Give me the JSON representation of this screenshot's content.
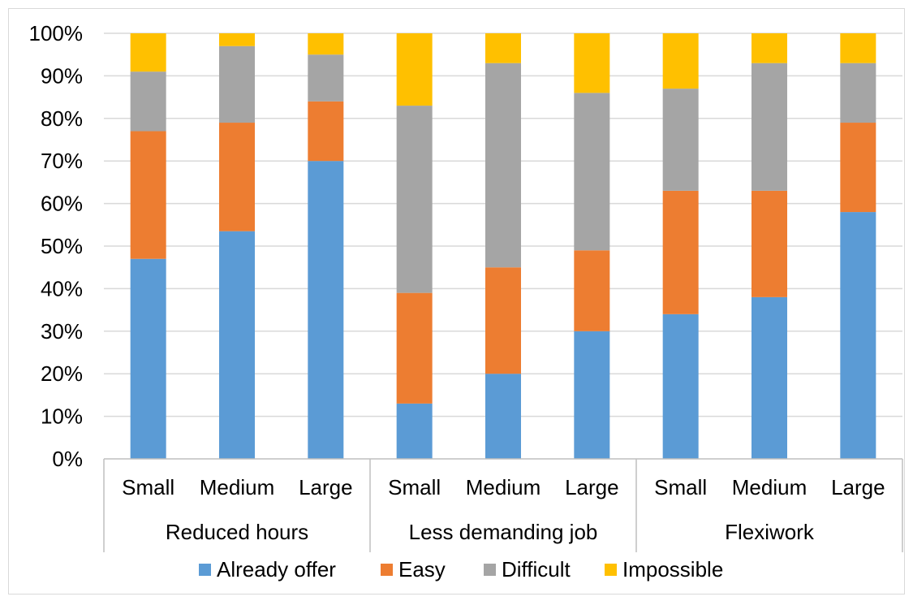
{
  "chart_data": {
    "type": "bar",
    "stacked": true,
    "percent_stacked": true,
    "groups": [
      {
        "label": "Reduced hours",
        "categories": [
          "Small",
          "Medium",
          "Large"
        ]
      },
      {
        "label": "Less demanding job",
        "categories": [
          "Small",
          "Medium",
          "Large"
        ]
      },
      {
        "label": "Flexiwork",
        "categories": [
          "Small",
          "Medium",
          "Large"
        ]
      }
    ],
    "series": [
      {
        "name": "Already offer",
        "color": "#5b9bd5",
        "values": [
          47,
          53.5,
          70,
          13,
          20,
          30,
          34,
          38,
          58
        ]
      },
      {
        "name": "Easy",
        "color": "#ed7d31",
        "values": [
          30,
          25.5,
          14,
          26,
          25,
          19,
          29,
          25,
          21
        ]
      },
      {
        "name": "Difficult",
        "color": "#a5a5a5",
        "values": [
          14,
          18,
          11,
          44,
          48,
          37,
          24,
          30,
          14
        ]
      },
      {
        "name": "Impossible",
        "color": "#ffc000",
        "values": [
          9,
          3,
          5,
          17,
          7,
          14,
          13,
          7,
          7
        ]
      }
    ],
    "yticks": [
      "0%",
      "10%",
      "20%",
      "30%",
      "40%",
      "50%",
      "60%",
      "70%",
      "80%",
      "90%",
      "100%"
    ],
    "ylim": [
      0,
      100
    ],
    "grid": true,
    "legend_position": "bottom",
    "title": "",
    "xlabel": "",
    "ylabel": ""
  }
}
